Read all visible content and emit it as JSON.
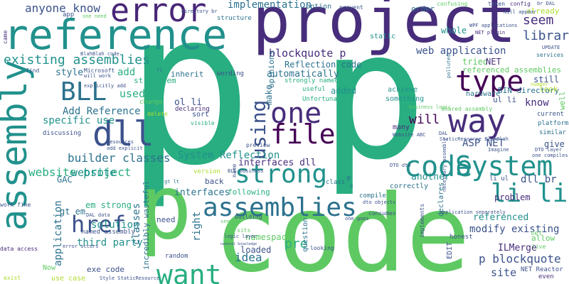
{
  "words": {
    "p_big_1": "p",
    "p_big_2": "p",
    "p_big_3": "p",
    "code_big": "code",
    "project": "project",
    "reference": "reference",
    "assembly": "assembly",
    "error": "error",
    "dll": "dll",
    "one": "one",
    "way": "way",
    "type": "type",
    "file": "file",
    "code_mid": "code",
    "system": "System",
    "strong": "strong",
    "using": "using",
    "li_li": "li li",
    "assemblies": "assemblies",
    "href": "href",
    "want": "want",
    "bll": "BLL",
    "idea": "idea",
    "website_project": "website project",
    "existing_assemblies": "existing assemblies",
    "implementation": "implementation",
    "anyone_know": "anyone know",
    "library": "library",
    "seem": "seem",
    "blockquote_p": "blockquote p",
    "web_application": "web application",
    "system_reflection": "System Reflection",
    "builder_classes": "builder classes",
    "interfaces_dll": "interfaces dll",
    "add_reference": "Add Reference",
    "website": "website",
    "solution": "solution",
    "third_party": "third party",
    "p_blockquote": "p blockquote",
    "ilmerge": "ILMerge",
    "modify_existing": "modify existing",
    "referenced": "referenced",
    "namespace": "namespace",
    "loaded": "loaded",
    "pre": "pre",
    "question": "question",
    "will": "will",
    "know": "know",
    "asp_net": "ASP NET",
    "give": "give",
    "dll_br": "dll br",
    "site": "site",
    "problem": "problem",
    "another": "another",
    "make": "make",
    "specific_use": "specific use",
    "used": "used",
    "add": "add",
    "style": "style",
    "ol_li": "ol li",
    "reflection_code": "Reflection code",
    "automatically": "automatically",
    "added": "added",
    "tried": "tried",
    "net": "NET",
    "referenced_assemblies": "referenced assemblies",
    "whole": "whole",
    "option": "option",
    "order": "order",
    "already": "already",
    "structure": "structure",
    "static": "static",
    "app": "app",
    "inherit": "inherit",
    "wording": "wording",
    "opinions": "opinions",
    "strongly_named": "strongly named",
    "useful": "useful",
    "unfortunately": "Unfortunately",
    "something": "something",
    "achieve": "achieve",
    "ul_li": "ul li",
    "bin_directory": "BIN directory",
    "hardware": "hardware",
    "still": "still",
    "look": "look",
    "current": "current",
    "platform": "platform",
    "similar": "similar",
    "well": "well",
    "many": "many",
    "interfaces": "interfaces",
    "following": "following",
    "class": "class",
    "correctly": "correctly",
    "back": "back",
    "right": "right",
    "classes": "classes",
    "application": "application",
    "gac": "GAC",
    "gt_em": "gt em",
    "em_strong": "em strong",
    "strong_em": "strong em",
    "use_case": "use case",
    "exe_code": "exe code",
    "now": "Now",
    "need": "need",
    "random": "random",
    "compile": "compile",
    "honest": "honest",
    "allow": "allow",
    "set": "set",
    "sort": "sort",
    "declaring": "declaring",
    "change": "change",
    "version": "version",
    "preview": "preview",
    "name": "name",
    "came": "came",
    "find": "find",
    "exist": "exist",
    "data_access": "data access",
    "work_fine": "work fine",
    "named_assembly": "named assembly",
    "confusing": "confusing",
    "taken": "taken",
    "config": "config",
    "update": "UPDATE",
    "services": "services",
    "prevent": "prevent",
    "directory_br": "directory br",
    "one_need": "one need",
    "blahblah_code": "BlahBlah code",
    "microsoft": "Microsoft",
    "will_work": "will work",
    "explicitly_add": "explicitly add",
    "strong_em_2": "strong em",
    "discussing": "discussing",
    "visible": "visible",
    "delete": "delete",
    "gt_lt": "gt lt",
    "resources": "resources",
    "dal_data": "DAL data",
    "error_occurs": "error occurs",
    "style_staticresource": "Style StaticResource",
    "net_reactor": "NET Reactor",
    "even": "even",
    "live": "live",
    "dto_layer": "DTO layer",
    "one_compiles": "one compiles",
    "imagine": "Imagine",
    "dal": "DAL",
    "staticresource_blahblah": "StaticResource BlahBlah",
    "website_abc": "Website ABC",
    "shared_assembly": "shared assembly",
    "business_logic": "business logic",
    "declares": "declares",
    "edit": "EDIT",
    "implements": "implements",
    "consumes": "consumes",
    "logic_layer": "logic layer",
    "dto_objects": "dto objects",
    "dto_dto": "DTO dto",
    "one_goes": "one goes",
    "application_separately": "application separately",
    "sits": "sits",
    "building": "building",
    "necessary_assembly": "necessary assembly",
    "wpf_applications": "WPF applications",
    "net_plugin": "NET plugin",
    "mill_appear": "mill appear",
    "number": "number",
    "br_dal": "br DAL",
    "polluted": "polluted",
    "seemed": "seemed",
    "natural_knowledge": "natural knowledge",
    "add_explicit": "add explicit",
    "incredibly_wasteful": "incredibly wasteful",
    "looking": "looking",
    "bll_business": "BLL business",
    "li_ul": "li ul",
    "fi": "fi",
    "e": "e",
    "x_mark": "x"
  }
}
